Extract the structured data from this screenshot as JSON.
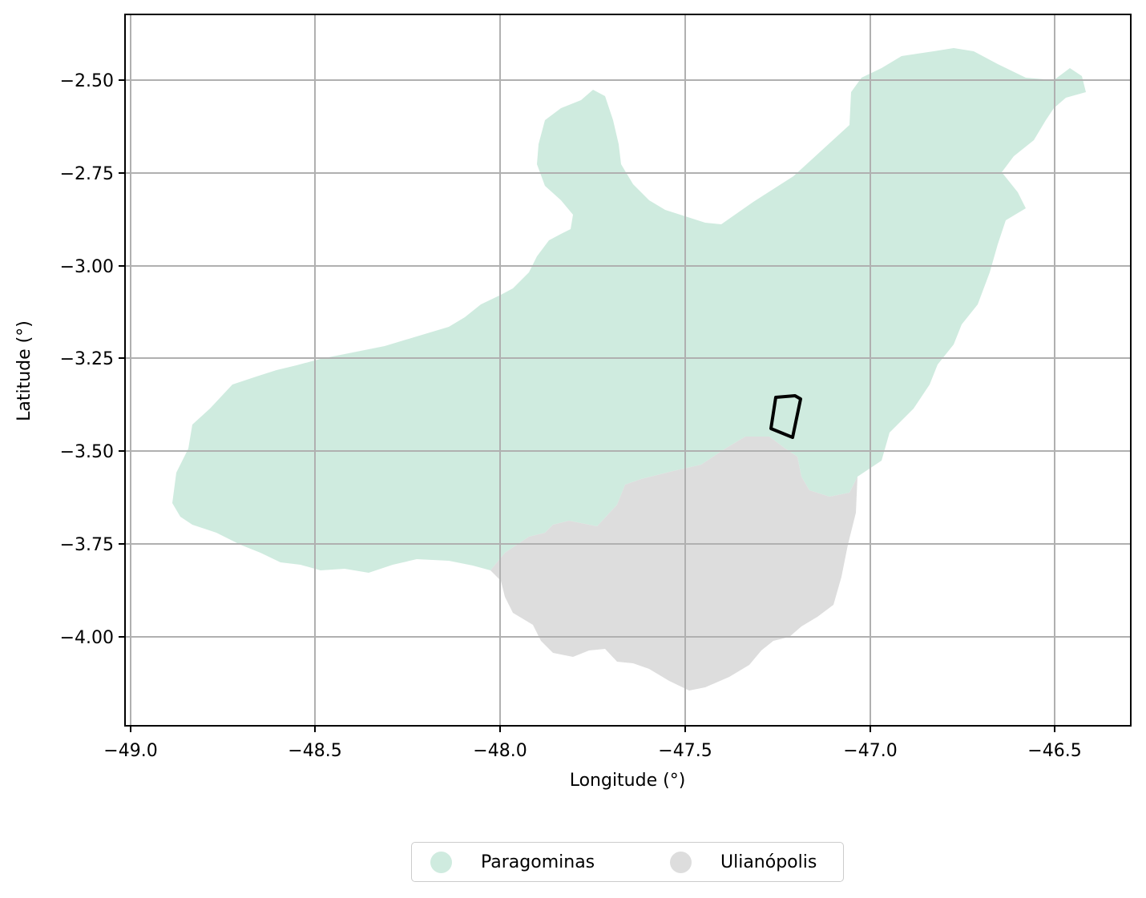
{
  "chart_data": {
    "type": "map",
    "xlabel": "Longitude (°)",
    "ylabel": "Latitude (°)",
    "xlim": [
      -49.0,
      -46.3
    ],
    "ylim": [
      -4.24,
      -2.33
    ],
    "grid": true,
    "legend_placement": "bottom-center",
    "x_ticks": [
      "−49.0",
      "−48.5",
      "−48.0",
      "−47.5",
      "−47.0",
      "−46.5"
    ],
    "y_ticks": [
      "−2.50",
      "−2.75",
      "−3.00",
      "−3.25",
      "−3.50",
      "−3.75",
      "−4.00"
    ],
    "regions": [
      {
        "name": "Paragominas",
        "color": "#cfebdf"
      },
      {
        "name": "Ulianópolis",
        "color": "#dddddd"
      }
    ],
    "highlight_area": {
      "outline_color": "#000000",
      "corners_lon_lat": [
        [
          -47.26,
          -3.36
        ],
        [
          -47.2,
          -3.36
        ],
        [
          -47.21,
          -3.47
        ],
        [
          -47.27,
          -3.44
        ]
      ]
    }
  },
  "legend": {
    "items": [
      {
        "label": "Paragominas",
        "color": "#cfebdf"
      },
      {
        "label": "Ulianópolis",
        "color": "#dddddd"
      }
    ]
  }
}
